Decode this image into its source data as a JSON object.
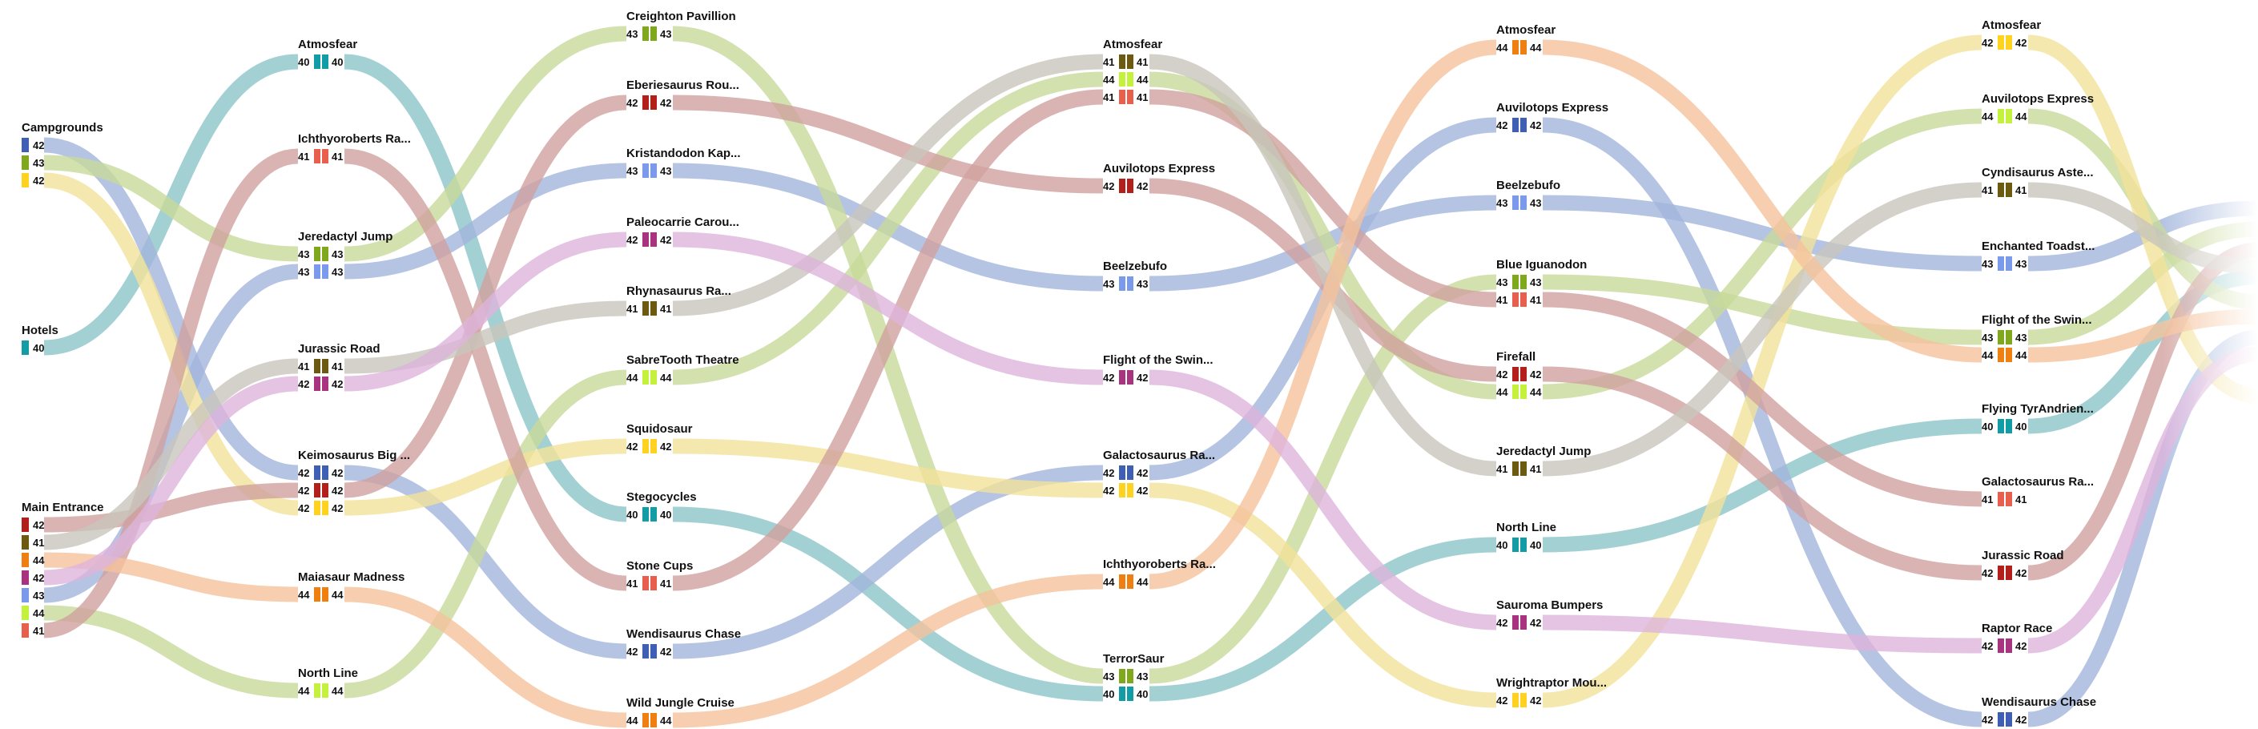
{
  "palette": {
    "40": "#129ca6",
    "41": "#6b5a0f",
    "42a": "#3f5fb4",
    "42b": "#b31f1a",
    "42c": "#ffd21f",
    "42d": "#a8337e",
    "42e": "#e8604d",
    "43a": "#7fa81c",
    "43b": "#7b9aeb",
    "44a": "#f07f12",
    "44b": "#c4f23c"
  },
  "link_colors": {
    "teal": "#8cc5c8",
    "blue": "#a3b5dc",
    "green": "#c8d99a",
    "yellow": "#f2e29a",
    "red": "#d1a19f",
    "gray": "#c8c5bb",
    "orange": "#f5c29c",
    "purple": "#ddb4dc"
  },
  "stops": [
    {
      "id": "campgrounds",
      "title": "Campgrounds",
      "rows": [
        {
          "l": "42",
          "c": "42a",
          "r": ""
        },
        {
          "l": "43",
          "c": "43a",
          "r": ""
        },
        {
          "l": "42",
          "c": "42c",
          "r": ""
        }
      ]
    },
    {
      "id": "hotels",
      "title": "Hotels",
      "rows": [
        {
          "l": "40",
          "c": "40",
          "r": ""
        }
      ]
    },
    {
      "id": "main-entrance",
      "title": "Main Entrance",
      "rows": [
        {
          "l": "42",
          "c": "42b",
          "r": ""
        },
        {
          "l": "41",
          "c": "41",
          "r": ""
        },
        {
          "l": "44",
          "c": "44a",
          "r": ""
        },
        {
          "l": "42",
          "c": "42d",
          "r": ""
        },
        {
          "l": "43",
          "c": "43b",
          "r": ""
        },
        {
          "l": "44",
          "c": "44b",
          "r": ""
        },
        {
          "l": "41",
          "c": "42e",
          "r": ""
        }
      ]
    },
    {
      "id": "c2-atmosfear",
      "title": "Atmosfear",
      "rows": [
        {
          "l": "40",
          "c": "40",
          "r": "40"
        }
      ]
    },
    {
      "id": "c2-ichthyoroberts",
      "title": "Ichthyoroberts Ra...",
      "rows": [
        {
          "l": "41",
          "c": "42e",
          "r": "41"
        }
      ]
    },
    {
      "id": "c2-jeredactyl",
      "title": "Jeredactyl Jump",
      "rows": [
        {
          "l": "43",
          "c": "43a",
          "r": "43"
        },
        {
          "l": "43",
          "c": "43b",
          "r": "43"
        }
      ]
    },
    {
      "id": "c2-jurassic-road",
      "title": "Jurassic Road",
      "rows": [
        {
          "l": "41",
          "c": "41",
          "r": "41"
        },
        {
          "l": "42",
          "c": "42d",
          "r": "42"
        }
      ]
    },
    {
      "id": "c2-keimosaurus",
      "title": "Keimosaurus Big ...",
      "rows": [
        {
          "l": "42",
          "c": "42a",
          "r": "42"
        },
        {
          "l": "42",
          "c": "42b",
          "r": "42"
        },
        {
          "l": "42",
          "c": "42c",
          "r": "42"
        }
      ]
    },
    {
      "id": "c2-maiasaur",
      "title": "Maiasaur Madness",
      "rows": [
        {
          "l": "44",
          "c": "44a",
          "r": "44"
        }
      ]
    },
    {
      "id": "c2-north-line",
      "title": "North Line",
      "rows": [
        {
          "l": "44",
          "c": "44b",
          "r": "44"
        }
      ]
    },
    {
      "id": "c3-creighton",
      "title": "Creighton Pavillion",
      "rows": [
        {
          "l": "43",
          "c": "43a",
          "r": "43"
        }
      ]
    },
    {
      "id": "c3-eberiesaurus",
      "title": "Eberiesaurus Rou...",
      "rows": [
        {
          "l": "42",
          "c": "42b",
          "r": "42"
        }
      ]
    },
    {
      "id": "c3-kristandodon",
      "title": "Kristandodon Kap...",
      "rows": [
        {
          "l": "43",
          "c": "43b",
          "r": "43"
        }
      ]
    },
    {
      "id": "c3-paleocarrie",
      "title": "Paleocarrie Carou...",
      "rows": [
        {
          "l": "42",
          "c": "42d",
          "r": "42"
        }
      ]
    },
    {
      "id": "c3-rhynasaurus",
      "title": "Rhynasaurus Ra...",
      "rows": [
        {
          "l": "41",
          "c": "41",
          "r": "41"
        }
      ]
    },
    {
      "id": "c3-sabretooth",
      "title": "SabreTooth Theatre",
      "rows": [
        {
          "l": "44",
          "c": "44b",
          "r": "44"
        }
      ]
    },
    {
      "id": "c3-squidosaur",
      "title": "Squidosaur",
      "rows": [
        {
          "l": "42",
          "c": "42c",
          "r": "42"
        }
      ]
    },
    {
      "id": "c3-stegocycles",
      "title": "Stegocycles",
      "rows": [
        {
          "l": "40",
          "c": "40",
          "r": "40"
        }
      ]
    },
    {
      "id": "c3-stone-cups",
      "title": "Stone Cups",
      "rows": [
        {
          "l": "41",
          "c": "42e",
          "r": "41"
        }
      ]
    },
    {
      "id": "c3-wendisaurus",
      "title": "Wendisaurus Chase",
      "rows": [
        {
          "l": "42",
          "c": "42a",
          "r": "42"
        }
      ]
    },
    {
      "id": "c3-wild-jungle",
      "title": "Wild Jungle Cruise",
      "rows": [
        {
          "l": "44",
          "c": "44a",
          "r": "44"
        }
      ]
    },
    {
      "id": "c4-atmosfear",
      "title": "Atmosfear",
      "rows": [
        {
          "l": "41",
          "c": "41",
          "r": "41"
        },
        {
          "l": "44",
          "c": "44b",
          "r": "44"
        },
        {
          "l": "41",
          "c": "42e",
          "r": "41"
        }
      ]
    },
    {
      "id": "c4-auvilotops",
      "title": "Auvilotops Express",
      "rows": [
        {
          "l": "42",
          "c": "42b",
          "r": "42"
        }
      ]
    },
    {
      "id": "c4-beelzebufo",
      "title": "Beelzebufo",
      "rows": [
        {
          "l": "43",
          "c": "43b",
          "r": "43"
        }
      ]
    },
    {
      "id": "c4-flight",
      "title": "Flight of the Swin...",
      "rows": [
        {
          "l": "42",
          "c": "42d",
          "r": "42"
        }
      ]
    },
    {
      "id": "c4-galactosaurus",
      "title": "Galactosaurus Ra...",
      "rows": [
        {
          "l": "42",
          "c": "42a",
          "r": "42"
        },
        {
          "l": "42",
          "c": "42c",
          "r": "42"
        }
      ]
    },
    {
      "id": "c4-ichthyoroberts",
      "title": "Ichthyoroberts Ra...",
      "rows": [
        {
          "l": "44",
          "c": "44a",
          "r": "44"
        }
      ]
    },
    {
      "id": "c4-terrorsaur",
      "title": "TerrorSaur",
      "rows": [
        {
          "l": "43",
          "c": "43a",
          "r": "43"
        },
        {
          "l": "40",
          "c": "40",
          "r": "40"
        }
      ]
    },
    {
      "id": "c5-atmosfear",
      "title": "Atmosfear",
      "rows": [
        {
          "l": "44",
          "c": "44a",
          "r": "44"
        }
      ]
    },
    {
      "id": "c5-auvilotops",
      "title": "Auvilotops Express",
      "rows": [
        {
          "l": "42",
          "c": "42a",
          "r": "42"
        }
      ]
    },
    {
      "id": "c5-beelzebufo",
      "title": "Beelzebufo",
      "rows": [
        {
          "l": "43",
          "c": "43b",
          "r": "43"
        }
      ]
    },
    {
      "id": "c5-blue-iguanodon",
      "title": "Blue Iguanodon",
      "rows": [
        {
          "l": "43",
          "c": "43a",
          "r": "43"
        },
        {
          "l": "41",
          "c": "42e",
          "r": "41"
        }
      ]
    },
    {
      "id": "c5-firefall",
      "title": "Firefall",
      "rows": [
        {
          "l": "42",
          "c": "42b",
          "r": "42"
        },
        {
          "l": "44",
          "c": "44b",
          "r": "44"
        }
      ]
    },
    {
      "id": "c5-jeredactyl",
      "title": "Jeredactyl Jump",
      "rows": [
        {
          "l": "41",
          "c": "41",
          "r": "41"
        }
      ]
    },
    {
      "id": "c5-north-line",
      "title": "North Line",
      "rows": [
        {
          "l": "40",
          "c": "40",
          "r": "40"
        }
      ]
    },
    {
      "id": "c5-sauroma",
      "title": "Sauroma Bumpers",
      "rows": [
        {
          "l": "42",
          "c": "42d",
          "r": "42"
        }
      ]
    },
    {
      "id": "c5-wrightraptor",
      "title": "Wrightraptor Mou...",
      "rows": [
        {
          "l": "42",
          "c": "42c",
          "r": "42"
        }
      ]
    },
    {
      "id": "c6-atmosfear",
      "title": "Atmosfear",
      "rows": [
        {
          "l": "42",
          "c": "42c",
          "r": "42"
        }
      ]
    },
    {
      "id": "c6-auvilotops",
      "title": "Auvilotops Express",
      "rows": [
        {
          "l": "44",
          "c": "44b",
          "r": "44"
        }
      ]
    },
    {
      "id": "c6-cyndisaurus",
      "title": "Cyndisaurus Aste...",
      "rows": [
        {
          "l": "41",
          "c": "41",
          "r": "41"
        }
      ]
    },
    {
      "id": "c6-enchanted",
      "title": "Enchanted Toadst...",
      "rows": [
        {
          "l": "43",
          "c": "43b",
          "r": "43"
        }
      ]
    },
    {
      "id": "c6-flight",
      "title": "Flight of the Swin...",
      "rows": [
        {
          "l": "43",
          "c": "43a",
          "r": "43"
        },
        {
          "l": "44",
          "c": "44a",
          "r": "44"
        }
      ]
    },
    {
      "id": "c6-flying",
      "title": "Flying TyrAndrien...",
      "rows": [
        {
          "l": "40",
          "c": "40",
          "r": "40"
        }
      ]
    },
    {
      "id": "c6-galactosaurus",
      "title": "Galactosaurus Ra...",
      "rows": [
        {
          "l": "41",
          "c": "42e",
          "r": "41"
        }
      ]
    },
    {
      "id": "c6-jurassic-road",
      "title": "Jurassic Road",
      "rows": [
        {
          "l": "42",
          "c": "42b",
          "r": "42"
        }
      ]
    },
    {
      "id": "c6-raptor-race",
      "title": "Raptor Race",
      "rows": [
        {
          "l": "42",
          "c": "42d",
          "r": "42"
        }
      ]
    },
    {
      "id": "c6-wendisaurus",
      "title": "Wendisaurus Chase",
      "rows": [
        {
          "l": "42",
          "c": "42a",
          "r": "42"
        }
      ]
    }
  ],
  "links": [
    {
      "from": "hotels:0",
      "to": "c2-atmosfear:0",
      "color": "teal"
    },
    {
      "from": "c2-atmosfear:0",
      "to": "c3-stegocycles:0",
      "color": "teal"
    },
    {
      "from": "c3-stegocycles:0",
      "to": "c4-terrorsaur:1",
      "color": "teal"
    },
    {
      "from": "c4-terrorsaur:1",
      "to": "c5-north-line:0",
      "color": "teal"
    },
    {
      "from": "c5-north-line:0",
      "to": "c6-flying:0",
      "color": "teal"
    },
    {
      "from": "c6-flying:0",
      "to": "end:0.33",
      "color": "teal"
    },
    {
      "from": "campgrounds:0",
      "to": "c2-keimosaurus:0",
      "color": "blue"
    },
    {
      "from": "c2-keimosaurus:0",
      "to": "c3-wendisaurus:0",
      "color": "blue"
    },
    {
      "from": "c3-wendisaurus:0",
      "to": "c4-galactosaurus:0",
      "color": "blue"
    },
    {
      "from": "c4-galactosaurus:0",
      "to": "c5-auvilotops:0",
      "color": "blue"
    },
    {
      "from": "c5-auvilotops:0",
      "to": "c6-wendisaurus:0",
      "color": "blue"
    },
    {
      "from": "c6-wendisaurus:0",
      "to": "end:0.62",
      "color": "blue"
    },
    {
      "from": "main-entrance:4",
      "to": "c2-jeredactyl:1",
      "color": "blue"
    },
    {
      "from": "c2-jeredactyl:1",
      "to": "c3-kristandodon:0",
      "color": "blue"
    },
    {
      "from": "c3-kristandodon:0",
      "to": "c4-beelzebufo:0",
      "color": "blue"
    },
    {
      "from": "c4-beelzebufo:0",
      "to": "c5-beelzebufo:0",
      "color": "blue"
    },
    {
      "from": "c5-beelzebufo:0",
      "to": "c6-enchanted:0",
      "color": "blue"
    },
    {
      "from": "c6-enchanted:0",
      "to": "end:0.0",
      "color": "blue"
    },
    {
      "from": "campgrounds:1",
      "to": "c2-jeredactyl:0",
      "color": "green"
    },
    {
      "from": "c2-jeredactyl:0",
      "to": "c3-creighton:0",
      "color": "green"
    },
    {
      "from": "c3-creighton:0",
      "to": "c4-terrorsaur:0",
      "color": "green"
    },
    {
      "from": "c4-terrorsaur:0",
      "to": "c5-blue-iguanodon:0",
      "color": "green"
    },
    {
      "from": "c5-blue-iguanodon:0",
      "to": "c6-flight:0",
      "color": "green"
    },
    {
      "from": "c6-flight:0",
      "to": "end:0.1",
      "color": "green"
    },
    {
      "from": "main-entrance:5",
      "to": "c2-north-line:0",
      "color": "green"
    },
    {
      "from": "c2-north-line:0",
      "to": "c3-sabretooth:0",
      "color": "green"
    },
    {
      "from": "c3-sabretooth:0",
      "to": "c4-atmosfear:1",
      "color": "green"
    },
    {
      "from": "c4-atmosfear:1",
      "to": "c5-firefall:1",
      "color": "green"
    },
    {
      "from": "c5-firefall:1",
      "to": "c6-auvilotops:0",
      "color": "green"
    },
    {
      "from": "c6-auvilotops:0",
      "to": "end:0.45",
      "color": "green"
    },
    {
      "from": "campgrounds:2",
      "to": "c2-keimosaurus:2",
      "color": "yellow"
    },
    {
      "from": "c2-keimosaurus:2",
      "to": "c3-squidosaur:0",
      "color": "yellow"
    },
    {
      "from": "c3-squidosaur:0",
      "to": "c4-galactosaurus:1",
      "color": "yellow"
    },
    {
      "from": "c4-galactosaurus:1",
      "to": "c5-wrightraptor:0",
      "color": "yellow"
    },
    {
      "from": "c5-wrightraptor:0",
      "to": "c6-atmosfear:0",
      "color": "yellow"
    },
    {
      "from": "c6-atmosfear:0",
      "to": "end:0.9",
      "color": "yellow"
    },
    {
      "from": "main-entrance:0",
      "to": "c2-keimosaurus:1",
      "color": "red"
    },
    {
      "from": "c2-keimosaurus:1",
      "to": "c3-eberiesaurus:0",
      "color": "red"
    },
    {
      "from": "c3-eberiesaurus:0",
      "to": "c4-auvilotops:0",
      "color": "red"
    },
    {
      "from": "c4-auvilotops:0",
      "to": "c5-firefall:0",
      "color": "red"
    },
    {
      "from": "c5-firefall:0",
      "to": "c6-jurassic-road:0",
      "color": "red"
    },
    {
      "from": "c6-jurassic-road:0",
      "to": "end:0.2",
      "color": "red"
    },
    {
      "from": "main-entrance:6",
      "to": "c2-ichthyoroberts:0",
      "color": "red"
    },
    {
      "from": "c2-ichthyoroberts:0",
      "to": "c3-stone-cups:0",
      "color": "red"
    },
    {
      "from": "c3-stone-cups:0",
      "to": "c4-atmosfear:2",
      "color": "red"
    },
    {
      "from": "c4-atmosfear:2",
      "to": "c5-blue-iguanodon:1",
      "color": "red"
    },
    {
      "from": "c5-blue-iguanodon:1",
      "to": "c6-galactosaurus:0",
      "color": "red"
    },
    {
      "from": "main-entrance:1",
      "to": "c2-jurassic-road:0",
      "color": "gray"
    },
    {
      "from": "c2-jurassic-road:0",
      "to": "c3-rhynasaurus:0",
      "color": "gray"
    },
    {
      "from": "c3-rhynasaurus:0",
      "to": "c4-atmosfear:0",
      "color": "gray"
    },
    {
      "from": "c4-atmosfear:0",
      "to": "c5-jeredactyl:0",
      "color": "gray"
    },
    {
      "from": "c5-jeredactyl:0",
      "to": "c6-cyndisaurus:0",
      "color": "gray"
    },
    {
      "from": "c6-cyndisaurus:0",
      "to": "end:0.28",
      "color": "gray"
    },
    {
      "from": "main-entrance:2",
      "to": "c2-maiasaur:0",
      "color": "orange"
    },
    {
      "from": "c2-maiasaur:0",
      "to": "c3-wild-jungle:0",
      "color": "orange"
    },
    {
      "from": "c3-wild-jungle:0",
      "to": "c4-ichthyoroberts:0",
      "color": "orange"
    },
    {
      "from": "c4-ichthyoroberts:0",
      "to": "c5-atmosfear:0",
      "color": "orange"
    },
    {
      "from": "c5-atmosfear:0",
      "to": "c6-flight:1",
      "color": "orange"
    },
    {
      "from": "c6-flight:1",
      "to": "end:0.52",
      "color": "orange"
    },
    {
      "from": "main-entrance:3",
      "to": "c2-jurassic-road:1",
      "color": "purple"
    },
    {
      "from": "c2-jurassic-road:1",
      "to": "c3-paleocarrie:0",
      "color": "purple"
    },
    {
      "from": "c3-paleocarrie:0",
      "to": "c4-flight:0",
      "color": "purple"
    },
    {
      "from": "c4-flight:0",
      "to": "c5-sauroma:0",
      "color": "purple"
    },
    {
      "from": "c5-sauroma:0",
      "to": "c6-raptor-race:0",
      "color": "purple"
    },
    {
      "from": "c6-raptor-race:0",
      "to": "end:0.7",
      "color": "purple"
    }
  ]
}
